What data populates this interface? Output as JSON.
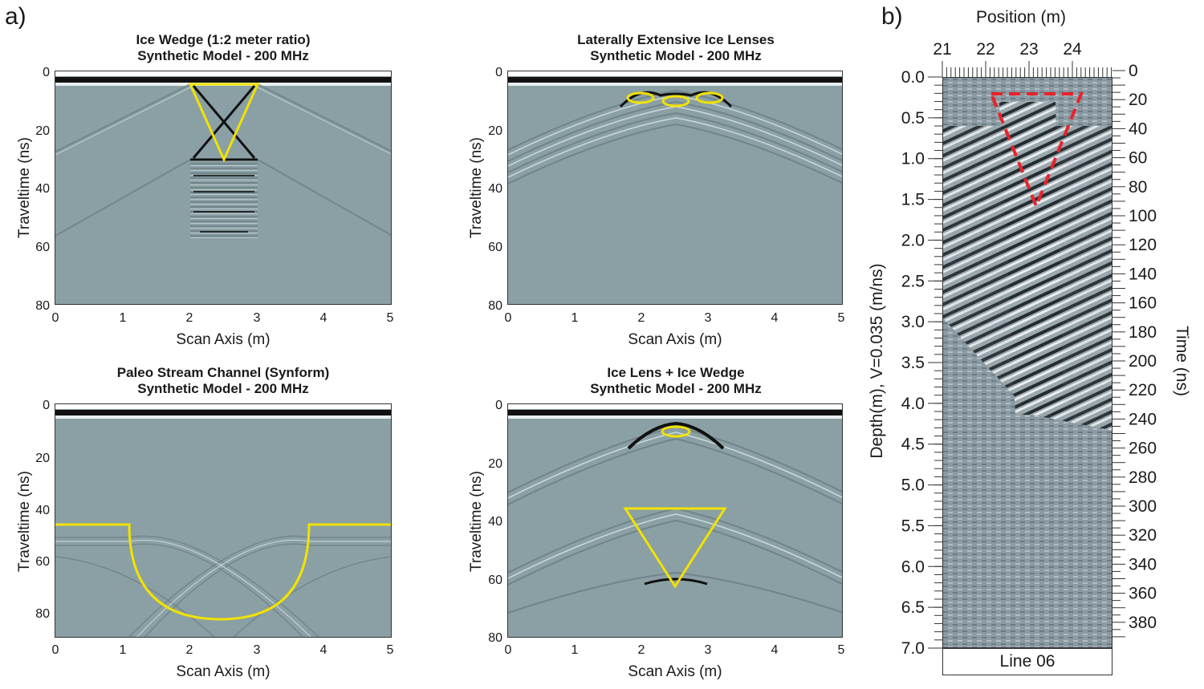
{
  "figure": {
    "panel_a_label": "a)",
    "panel_b_label": "b)"
  },
  "panels": {
    "tl": {
      "title_line1": "Ice Wedge (1:2 meter ratio)",
      "title_line2": "Synthetic Model - 200 MHz",
      "xlabel": "Scan Axis (m)",
      "ylabel": "Traveltime (ns)",
      "xticks": [
        "0",
        "1",
        "2",
        "3",
        "4",
        "5"
      ],
      "yticks": [
        "0",
        "20",
        "40",
        "60",
        "80"
      ]
    },
    "tr": {
      "title_line1": "Laterally Extensive Ice Lenses",
      "title_line2": "Synthetic Model - 200 MHz",
      "xlabel": "Scan Axis (m)",
      "ylabel": "Traveltime (ns)",
      "xticks": [
        "0",
        "1",
        "2",
        "3",
        "4",
        "5"
      ],
      "yticks": [
        "0",
        "20",
        "40",
        "60",
        "80"
      ]
    },
    "bl": {
      "title_line1": "Paleo Stream Channel (Synform)",
      "title_line2": "Synthetic Model - 200 MHz",
      "xlabel": "Scan Axis (m)",
      "ylabel": "Traveltime (ns)",
      "xticks": [
        "0",
        "1",
        "2",
        "3",
        "4",
        "5"
      ],
      "yticks": [
        "0",
        "20",
        "40",
        "60",
        "80"
      ]
    },
    "br": {
      "title_line1": "Ice Lens + Ice Wedge",
      "title_line2": "Synthetic Model - 200 MHz",
      "xlabel": "Scan Axis (m)",
      "ylabel": "Traveltime (ns)",
      "xticks": [
        "0",
        "1",
        "2",
        "3",
        "4",
        "5"
      ],
      "yticks": [
        "0",
        "20",
        "40",
        "60",
        "80"
      ]
    },
    "b": {
      "top_label": "Position (m)",
      "position_ticks": [
        "21",
        "22",
        "23",
        "24"
      ],
      "depth_label": "Depth(m), V=0.035 (m/ns)",
      "depth_ticks": [
        "0.0",
        "0.5",
        "1.0",
        "1.5",
        "2.0",
        "2.5",
        "3.0",
        "3.5",
        "4.0",
        "4.5",
        "5.0",
        "5.5",
        "6.0",
        "6.5",
        "7.0"
      ],
      "time_label": "Time (ns)",
      "time_ticks": [
        "0",
        "20",
        "40",
        "60",
        "80",
        "100",
        "120",
        "140",
        "160",
        "180",
        "200",
        "220",
        "240",
        "260",
        "280",
        "300",
        "320",
        "340",
        "360",
        "380"
      ],
      "line_name": "Line 06"
    }
  },
  "colors": {
    "background_gray": "#8aa0a5",
    "annotation_yellow": "#f2e200",
    "annotation_red": "#e8232a"
  }
}
